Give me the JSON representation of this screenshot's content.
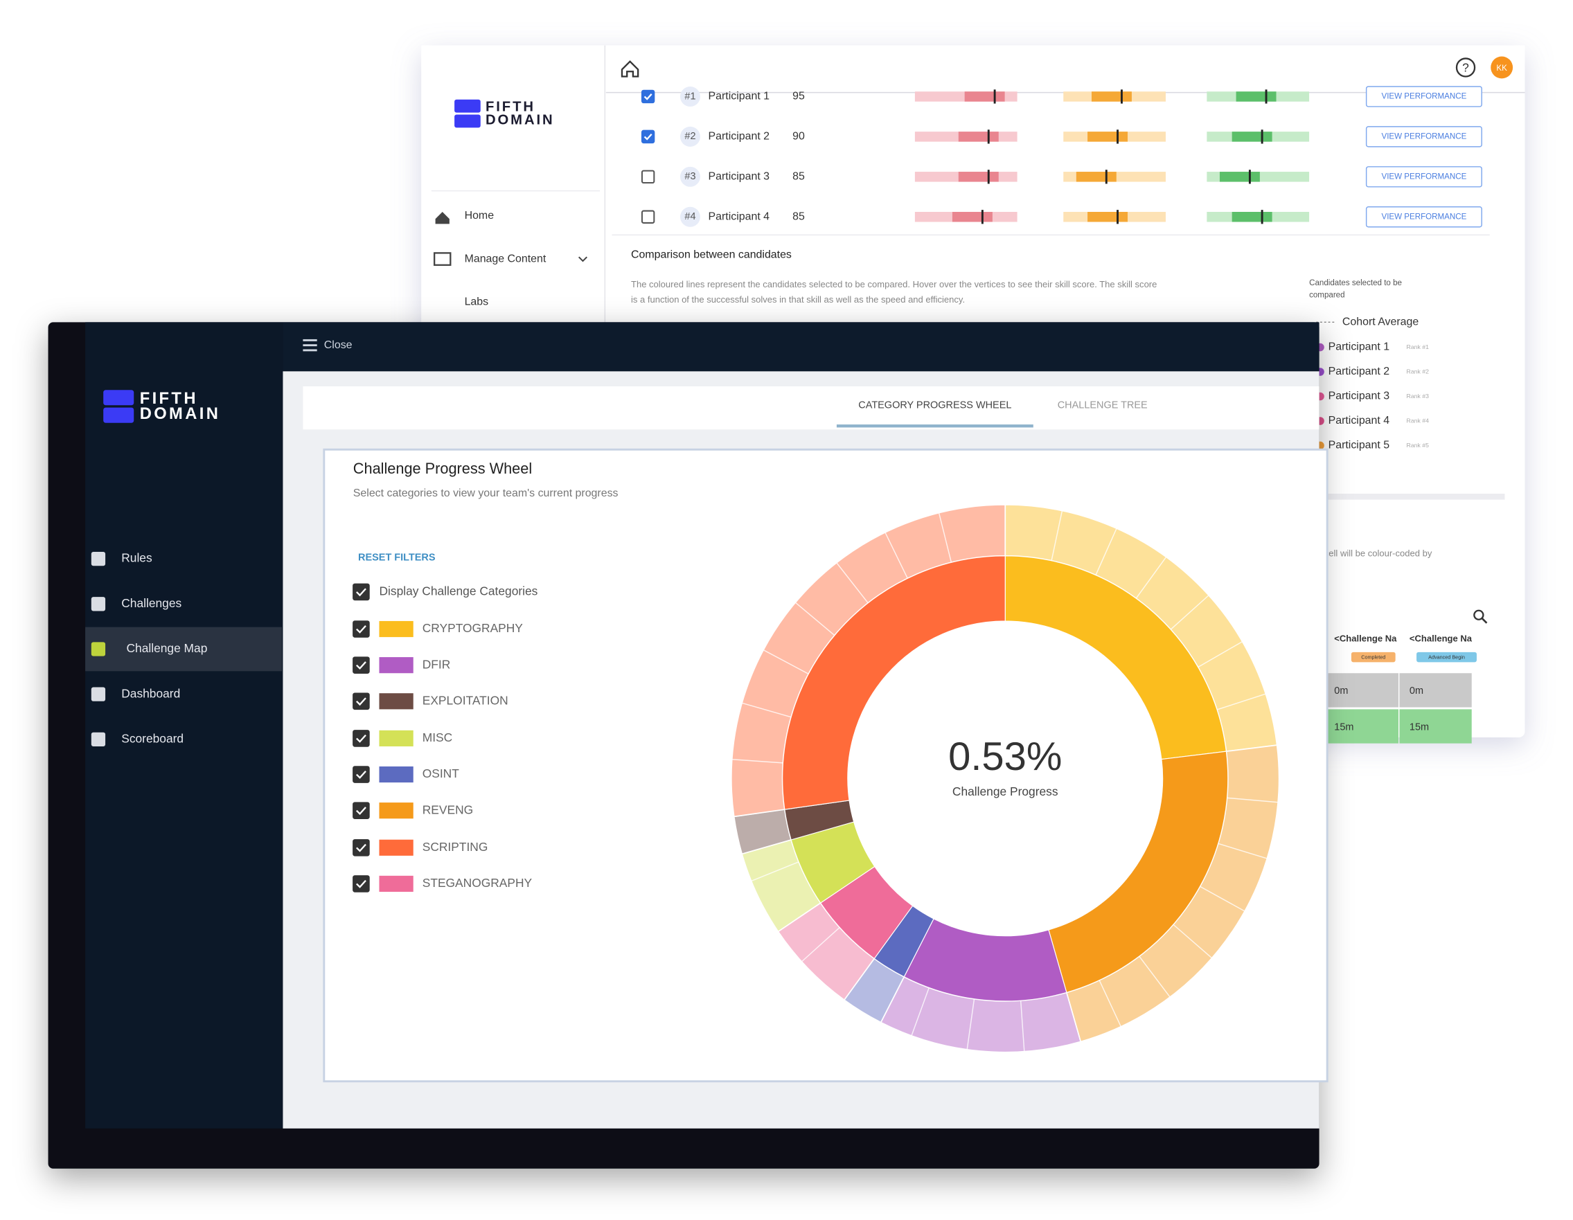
{
  "back_window": {
    "logo": [
      "FIFTH",
      "DOMAIN"
    ],
    "avatar": "KK",
    "nav": [
      "Home",
      "Manage Content",
      "Labs"
    ],
    "participants": [
      {
        "rank": "#1",
        "name": "Participant 1",
        "score": 95,
        "checked": true
      },
      {
        "rank": "#2",
        "name": "Participant 2",
        "score": 90,
        "checked": true
      },
      {
        "rank": "#3",
        "name": "Participant 3",
        "score": 85,
        "checked": false
      },
      {
        "rank": "#4",
        "name": "Participant 4",
        "score": 85,
        "checked": false
      }
    ],
    "button": "VIEW PERFORMANCE",
    "comparison_title": "Comparison between candidates",
    "comparison_text": [
      "The coloured lines represent the candidates selected to be compared. Hover over the vertices to see their skill score. The skill score",
      "is a function of the successful solves in that skill as well as the speed and efficiency."
    ],
    "candidates_heading": [
      "Candidates selected to be",
      "compared"
    ],
    "cohort": "Cohort Average",
    "candidates": [
      {
        "name": "Participant 1",
        "rank": "Rank #1",
        "color": "#b05cc4"
      },
      {
        "name": "Participant 2",
        "rank": "Rank #2",
        "color": "#9c4fd0"
      },
      {
        "name": "Participant 3",
        "rank": "Rank #3",
        "color": "#e85a9a"
      },
      {
        "name": "Participant 4",
        "rank": "Rank #4",
        "color": "#e0508c"
      },
      {
        "name": "Participant 5",
        "rank": "Rank #5",
        "color": "#f2a03a"
      }
    ],
    "matrix": {
      "caption": "cell will be colour-coded by",
      "headers": [
        "<Challenge Na",
        "<Challenge Na"
      ],
      "badges": [
        "Completed",
        "Advanced Begin"
      ],
      "cells": [
        [
          "0m",
          "0m"
        ],
        [
          "15m",
          "15m"
        ]
      ]
    }
  },
  "front_window": {
    "logo": [
      "FIFTH",
      "DOMAIN"
    ],
    "close": "Close",
    "nav": [
      "Rules",
      "Challenges",
      "Challenge Map",
      "Dashboard",
      "Scoreboard"
    ],
    "active_nav": 2,
    "tabs": [
      "CATEGORY PROGRESS WHEEL",
      "CHALLENGE TREE"
    ],
    "title": "Challenge Progress Wheel",
    "subtitle": "Select categories to view your team's current progress",
    "reset": "RESET FILTERS",
    "display_label": "Display Challenge Categories",
    "categories": [
      {
        "name": "CRYPTOGRAPHY",
        "color": "#fbbd1e"
      },
      {
        "name": "DFIR",
        "color": "#b05cc4"
      },
      {
        "name": "EXPLOITATION",
        "color": "#6d4c44"
      },
      {
        "name": "MISC",
        "color": "#d4e157"
      },
      {
        "name": "OSINT",
        "color": "#5c6bc0"
      },
      {
        "name": "REVENG",
        "color": "#f59a1a"
      },
      {
        "name": "SCRIPTING",
        "color": "#ff6b3a"
      },
      {
        "name": "STEGANOGRAPHY",
        "color": "#ef6c99"
      }
    ],
    "progress": "0.53%",
    "progress_label": "Challenge Progress"
  }
}
